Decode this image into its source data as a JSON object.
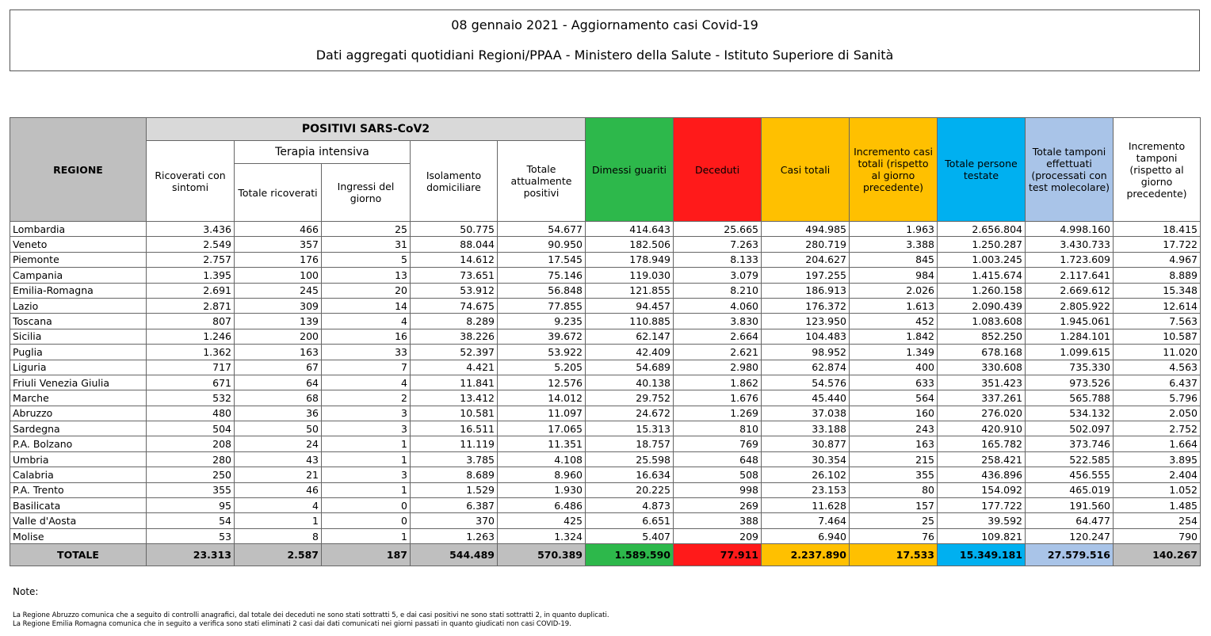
{
  "header": {
    "title": "08 gennaio 2021 - Aggiornamento casi Covid-19",
    "subtitle": "Dati aggregati quotidiani Regioni/PPAA - Ministero della Salute - Istituto Superiore di Sanità"
  },
  "table": {
    "headers": {
      "regione": "REGIONE",
      "positivi": "POSITIVI SARS-CoV2",
      "ricoverati": "Ricoverati con sintomi",
      "terapia": "Terapia intensiva",
      "totale_ricoverati": "Totale ricoverati",
      "ingressi": "Ingressi del giorno",
      "isolamento": "Isolamento domiciliare",
      "attualmente": "Totale attualmente positivi",
      "dimessi": "Dimessi guariti",
      "deceduti": "Deceduti",
      "casi": "Casi totali",
      "incremento_casi": "Incremento casi totali (rispetto al giorno precedente)",
      "persone": "Totale persone testate",
      "tamponi": "Totale tamponi effettuati (processati con test molecolare)",
      "incremento_tamponi": "Incremento tamponi (rispetto al giorno precedente)"
    },
    "rows": [
      [
        "Lombardia",
        "3.436",
        "466",
        "25",
        "50.775",
        "54.677",
        "414.643",
        "25.665",
        "494.985",
        "1.963",
        "2.656.804",
        "4.998.160",
        "18.415"
      ],
      [
        "Veneto",
        "2.549",
        "357",
        "31",
        "88.044",
        "90.950",
        "182.506",
        "7.263",
        "280.719",
        "3.388",
        "1.250.287",
        "3.430.733",
        "17.722"
      ],
      [
        "Piemonte",
        "2.757",
        "176",
        "5",
        "14.612",
        "17.545",
        "178.949",
        "8.133",
        "204.627",
        "845",
        "1.003.245",
        "1.723.609",
        "4.967"
      ],
      [
        "Campania",
        "1.395",
        "100",
        "13",
        "73.651",
        "75.146",
        "119.030",
        "3.079",
        "197.255",
        "984",
        "1.415.674",
        "2.117.641",
        "8.889"
      ],
      [
        "Emilia-Romagna",
        "2.691",
        "245",
        "20",
        "53.912",
        "56.848",
        "121.855",
        "8.210",
        "186.913",
        "2.026",
        "1.260.158",
        "2.669.612",
        "15.348"
      ],
      [
        "Lazio",
        "2.871",
        "309",
        "14",
        "74.675",
        "77.855",
        "94.457",
        "4.060",
        "176.372",
        "1.613",
        "2.090.439",
        "2.805.922",
        "12.614"
      ],
      [
        "Toscana",
        "807",
        "139",
        "4",
        "8.289",
        "9.235",
        "110.885",
        "3.830",
        "123.950",
        "452",
        "1.083.608",
        "1.945.061",
        "7.563"
      ],
      [
        "Sicilia",
        "1.246",
        "200",
        "16",
        "38.226",
        "39.672",
        "62.147",
        "2.664",
        "104.483",
        "1.842",
        "852.250",
        "1.284.101",
        "10.587"
      ],
      [
        "Puglia",
        "1.362",
        "163",
        "33",
        "52.397",
        "53.922",
        "42.409",
        "2.621",
        "98.952",
        "1.349",
        "678.168",
        "1.099.615",
        "11.020"
      ],
      [
        "Liguria",
        "717",
        "67",
        "7",
        "4.421",
        "5.205",
        "54.689",
        "2.980",
        "62.874",
        "400",
        "330.608",
        "735.330",
        "4.563"
      ],
      [
        "Friuli Venezia Giulia",
        "671",
        "64",
        "4",
        "11.841",
        "12.576",
        "40.138",
        "1.862",
        "54.576",
        "633",
        "351.423",
        "973.526",
        "6.437"
      ],
      [
        "Marche",
        "532",
        "68",
        "2",
        "13.412",
        "14.012",
        "29.752",
        "1.676",
        "45.440",
        "564",
        "337.261",
        "565.788",
        "5.796"
      ],
      [
        "Abruzzo",
        "480",
        "36",
        "3",
        "10.581",
        "11.097",
        "24.672",
        "1.269",
        "37.038",
        "160",
        "276.020",
        "534.132",
        "2.050"
      ],
      [
        "Sardegna",
        "504",
        "50",
        "3",
        "16.511",
        "17.065",
        "15.313",
        "810",
        "33.188",
        "243",
        "420.910",
        "502.097",
        "2.752"
      ],
      [
        "P.A. Bolzano",
        "208",
        "24",
        "1",
        "11.119",
        "11.351",
        "18.757",
        "769",
        "30.877",
        "163",
        "165.782",
        "373.746",
        "1.664"
      ],
      [
        "Umbria",
        "280",
        "43",
        "1",
        "3.785",
        "4.108",
        "25.598",
        "648",
        "30.354",
        "215",
        "258.421",
        "522.585",
        "3.895"
      ],
      [
        "Calabria",
        "250",
        "21",
        "3",
        "8.689",
        "8.960",
        "16.634",
        "508",
        "26.102",
        "355",
        "436.896",
        "456.555",
        "2.404"
      ],
      [
        "P.A. Trento",
        "355",
        "46",
        "1",
        "1.529",
        "1.930",
        "20.225",
        "998",
        "23.153",
        "80",
        "154.092",
        "465.019",
        "1.052"
      ],
      [
        "Basilicata",
        "95",
        "4",
        "0",
        "6.387",
        "6.486",
        "4.873",
        "269",
        "11.628",
        "157",
        "177.722",
        "191.560",
        "1.485"
      ],
      [
        "Valle d'Aosta",
        "54",
        "1",
        "0",
        "370",
        "425",
        "6.651",
        "388",
        "7.464",
        "25",
        "39.592",
        "64.477",
        "254"
      ],
      [
        "Molise",
        "53",
        "8",
        "1",
        "1.263",
        "1.324",
        "5.407",
        "209",
        "6.940",
        "76",
        "109.821",
        "120.247",
        "790"
      ]
    ],
    "total": [
      "TOTALE",
      "23.313",
      "2.587",
      "187",
      "544.489",
      "570.389",
      "1.589.590",
      "77.911",
      "2.237.890",
      "17.533",
      "15.349.181",
      "27.579.516",
      "140.267"
    ]
  },
  "notes": {
    "label": "Note:",
    "lines": [
      "La Regione Abruzzo comunica che a seguito di controlli anagrafici, dal totale dei deceduti ne sono stati sottratti 5, e dai casi positivi ne sono stati sottratti 2, in quanto duplicati.",
      "La Regione Emilia Romagna comunica che in seguito a verifica sono stati eliminati 2 casi dai dati comunicati nei giorni passati in quanto giudicati non casi COVID-19."
    ]
  }
}
